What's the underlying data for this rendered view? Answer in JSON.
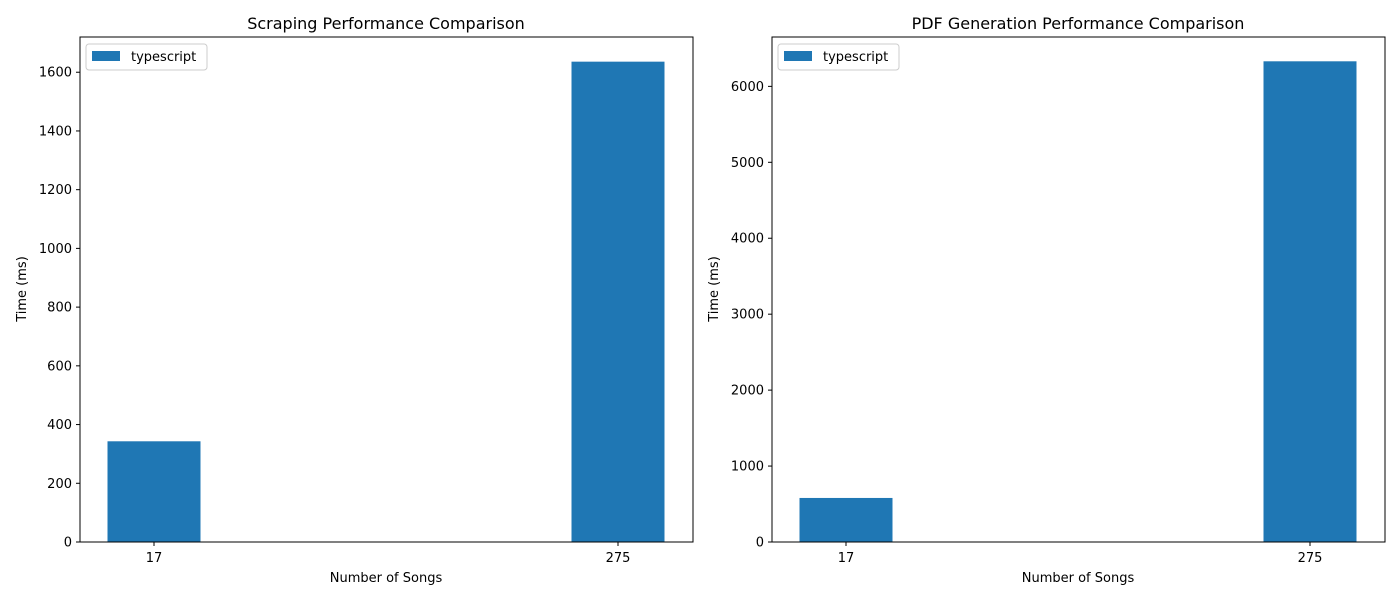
{
  "chart_data": [
    {
      "type": "bar",
      "title": "Scraping Performance Comparison",
      "xlabel": "Number of Songs",
      "ylabel": "Time (ms)",
      "categories": [
        "17",
        "275"
      ],
      "series": [
        {
          "name": "typescript",
          "color": "#1f77b4",
          "values": [
            343,
            1636
          ]
        }
      ],
      "ylim": [
        0,
        1720
      ],
      "yticks": [
        0,
        200,
        400,
        600,
        800,
        1000,
        1200,
        1400,
        1600
      ],
      "legend": "top-left",
      "grid": false
    },
    {
      "type": "bar",
      "title": "PDF Generation Performance Comparison",
      "xlabel": "Number of Songs",
      "ylabel": "Time (ms)",
      "categories": [
        "17",
        "275"
      ],
      "series": [
        {
          "name": "typescript",
          "color": "#1f77b4",
          "values": [
            580,
            6330
          ]
        }
      ],
      "ylim": [
        0,
        6650
      ],
      "yticks": [
        0,
        1000,
        2000,
        3000,
        4000,
        5000,
        6000
      ],
      "legend": "top-left",
      "grid": false
    }
  ]
}
